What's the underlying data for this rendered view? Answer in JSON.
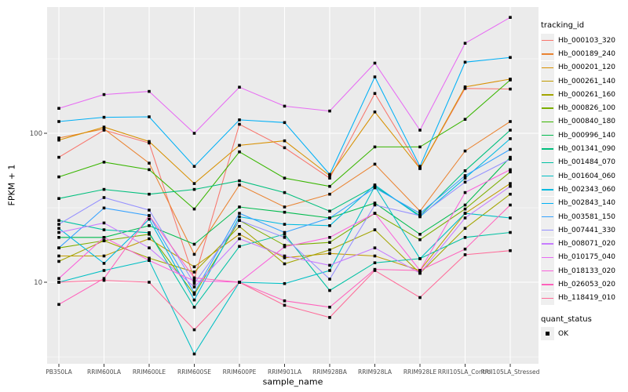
{
  "figure": {
    "background": "#FFFFFF",
    "panel_background": "#EBEBEB",
    "grid_color": "#FFFFFF",
    "tick_label_color": "#4D4D4D"
  },
  "chart_data": {
    "type": "line",
    "title": "",
    "xlabel": "sample_name",
    "ylabel": "FPKM + 1",
    "y_scale": "log10",
    "ylim": [
      2.9,
      720
    ],
    "y_ticks": [
      100,
      10
    ],
    "y_minor_gridlines": [
      316.23,
      31.62,
      3.16
    ],
    "grid": true,
    "legend_position": "right",
    "legend_title": "tracking_id",
    "shape_legend": {
      "title": "quant_status",
      "items": [
        "OK"
      ]
    },
    "point_marker": {
      "shape": "square",
      "color": "#000000"
    },
    "panel_bg": "#EBEBEB",
    "categories": [
      "PB350LA",
      "RRIM600LA",
      "RRIM600LE",
      "RRIM600SE",
      "RRIM600PE",
      "RRIM901LA",
      "RRIM928BA",
      "RRIM928LA",
      "RRIM928LE",
      "RRII105LA_Control",
      "RRII105LA_Stressed"
    ],
    "series": [
      {
        "name": "Hb_000103_320",
        "color": "#F8766D",
        "values": [
          69,
          105,
          86,
          10.5,
          115,
          80,
          50,
          185,
          58,
          200,
          198
        ]
      },
      {
        "name": "Hb_000189_240",
        "color": "#EA8331",
        "values": [
          93,
          107,
          63,
          15.4,
          45,
          32,
          39,
          62,
          30,
          76,
          120
        ]
      },
      {
        "name": "Hb_000201_120",
        "color": "#D89000",
        "values": [
          90,
          110,
          88,
          46,
          83,
          89,
          52,
          139,
          58,
          205,
          231
        ]
      },
      {
        "name": "Hb_000261_140",
        "color": "#C09B00",
        "values": [
          15,
          15,
          19.6,
          12.7,
          21,
          14.6,
          15.6,
          15,
          12,
          29,
          46
        ]
      },
      {
        "name": "Hb_000261_160",
        "color": "#A3A500",
        "values": [
          13.8,
          19,
          14.5,
          11.7,
          23.7,
          13.3,
          16.5,
          22.5,
          11.5,
          23,
          39
        ]
      },
      {
        "name": "Hb_000826_100",
        "color": "#7CAE00",
        "values": [
          17,
          19,
          21,
          8.3,
          26,
          17.7,
          18.5,
          29,
          19.3,
          31,
          55
        ]
      },
      {
        "name": "Hb_000840_180",
        "color": "#39B600",
        "values": [
          51,
          64,
          57,
          31,
          75,
          50,
          44,
          81,
          81,
          124,
          228
        ]
      },
      {
        "name": "Hb_000996_140",
        "color": "#00BB4E",
        "values": [
          20,
          20,
          24,
          18,
          32,
          29.5,
          27,
          34,
          21,
          33,
          69
        ]
      },
      {
        "name": "Hb_001341_090",
        "color": "#00BF7D",
        "values": [
          36.5,
          42,
          39,
          42,
          48,
          40,
          30,
          44,
          28,
          56,
          105
        ]
      },
      {
        "name": "Hb_001484_070",
        "color": "#00C1A3",
        "values": [
          26,
          22.5,
          21.5,
          6.8,
          17.4,
          21,
          8.8,
          13.5,
          14.4,
          20,
          21.6
        ]
      },
      {
        "name": "Hb_001604_060",
        "color": "#00BFC4",
        "values": [
          10,
          12,
          14,
          3.3,
          10,
          9.8,
          12,
          44,
          14.4,
          29,
          27
        ]
      },
      {
        "name": "Hb_002343_060",
        "color": "#00BAE0",
        "values": [
          23,
          13.4,
          26.5,
          7.6,
          27.5,
          24.5,
          24,
          45,
          27.5,
          50,
          92
        ]
      },
      {
        "name": "Hb_002843_140",
        "color": "#00B0F6",
        "values": [
          120,
          128,
          129,
          60,
          123,
          118,
          53,
          239,
          60,
          300,
          323
        ]
      },
      {
        "name": "Hb_003581_150",
        "color": "#35A2FF",
        "values": [
          17,
          31.5,
          28,
          8.5,
          29,
          21.6,
          27,
          43,
          29,
          52,
          78
        ]
      },
      {
        "name": "Hb_007441_330",
        "color": "#9590FF",
        "values": [
          24.5,
          37,
          30.5,
          9.8,
          26,
          20,
          10.5,
          33,
          28,
          47,
          67
        ]
      },
      {
        "name": "Hb_008071_020",
        "color": "#C77CFF",
        "values": [
          21.6,
          25,
          17,
          9.3,
          19.6,
          15,
          13,
          17,
          11.5,
          27,
          44
        ]
      },
      {
        "name": "Hb_010175_040",
        "color": "#E76BF3",
        "values": [
          147,
          182,
          191,
          100,
          204,
          152,
          141,
          296,
          105,
          402,
          600
        ]
      },
      {
        "name": "Hb_018133_020",
        "color": "#FA62DB",
        "values": [
          10.6,
          20,
          14,
          10.2,
          10,
          17.3,
          20,
          29,
          12,
          40,
          57
        ]
      },
      {
        "name": "Hb_026053_020",
        "color": "#FF62BC",
        "values": [
          7.1,
          10.6,
          28,
          10.7,
          10,
          7.5,
          6.8,
          12.2,
          12,
          16.7,
          33
        ]
      },
      {
        "name": "Hb_118419_010",
        "color": "#FF6A98",
        "values": [
          10,
          10.3,
          10,
          4.8,
          10,
          7,
          5.8,
          12,
          7.9,
          15.3,
          16.3
        ]
      }
    ]
  }
}
